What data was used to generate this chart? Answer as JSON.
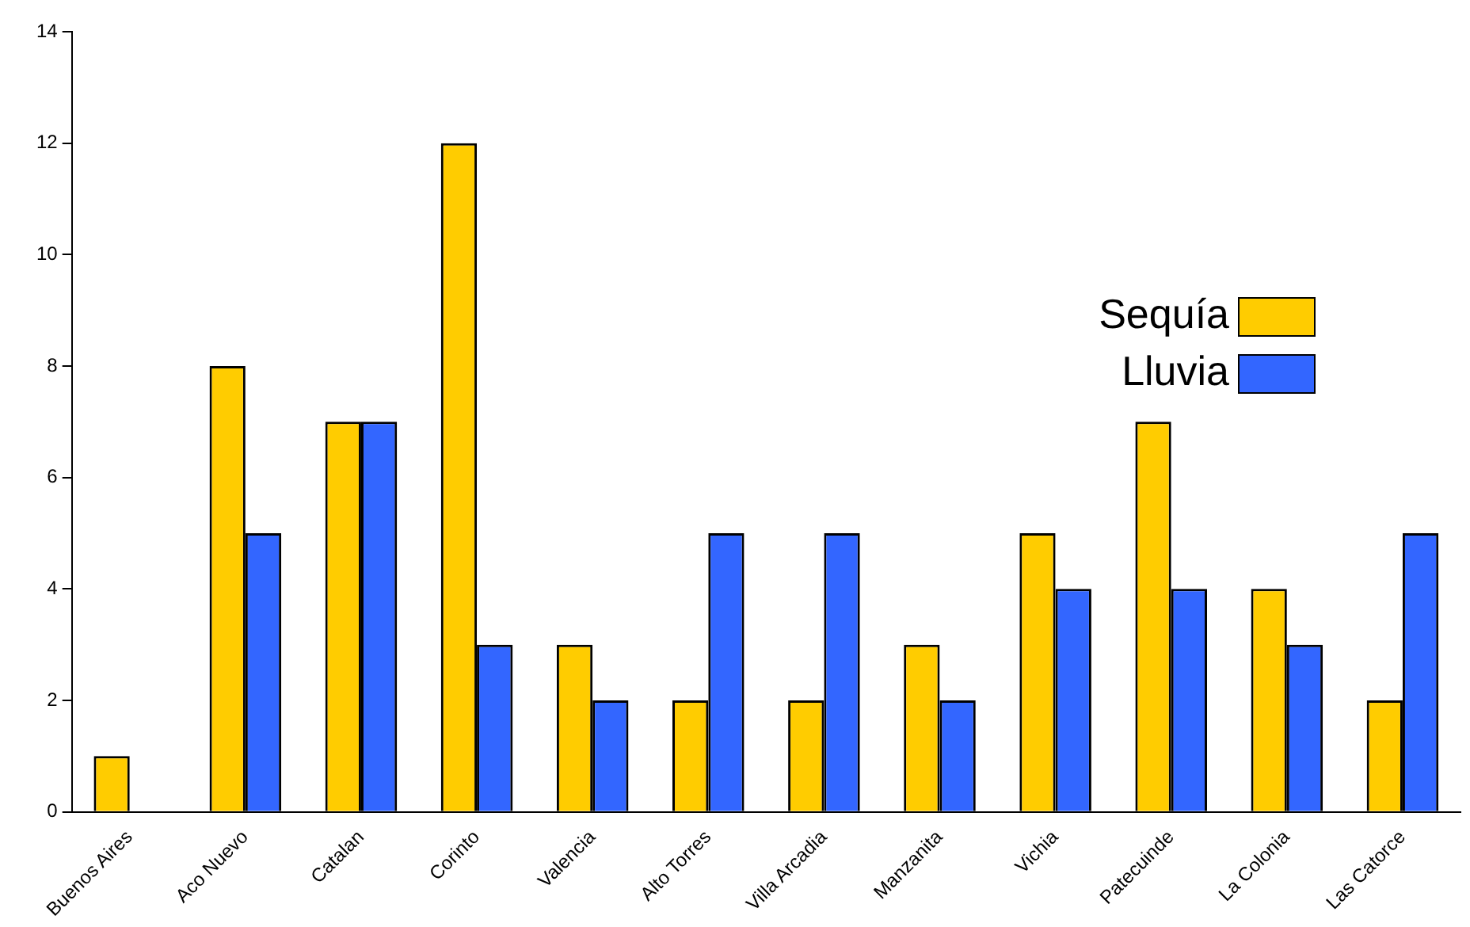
{
  "chart_data": {
    "type": "bar",
    "categories": [
      "Buenos Aires",
      "Aco Nuevo",
      "Catalan",
      "Corinto",
      "Valencia",
      "Alto Torres",
      "Villa Arcadia",
      "Manzanita",
      "Vichia",
      "Patecuinde",
      "La Colonia",
      "Las Catorce"
    ],
    "series": [
      {
        "name": "Sequía",
        "color": "#ffcc00",
        "values": [
          1,
          8,
          7,
          12,
          3,
          2,
          2,
          3,
          5,
          7,
          4,
          2
        ]
      },
      {
        "name": "Lluvia",
        "color": "#3366ff",
        "values": [
          0,
          5,
          7,
          3,
          2,
          5,
          5,
          2,
          4,
          4,
          3,
          5
        ]
      }
    ],
    "ylim": [
      0,
      14
    ],
    "yticks": [
      0,
      2,
      4,
      6,
      8,
      10,
      12,
      14
    ],
    "grid": false,
    "legend": "right"
  }
}
